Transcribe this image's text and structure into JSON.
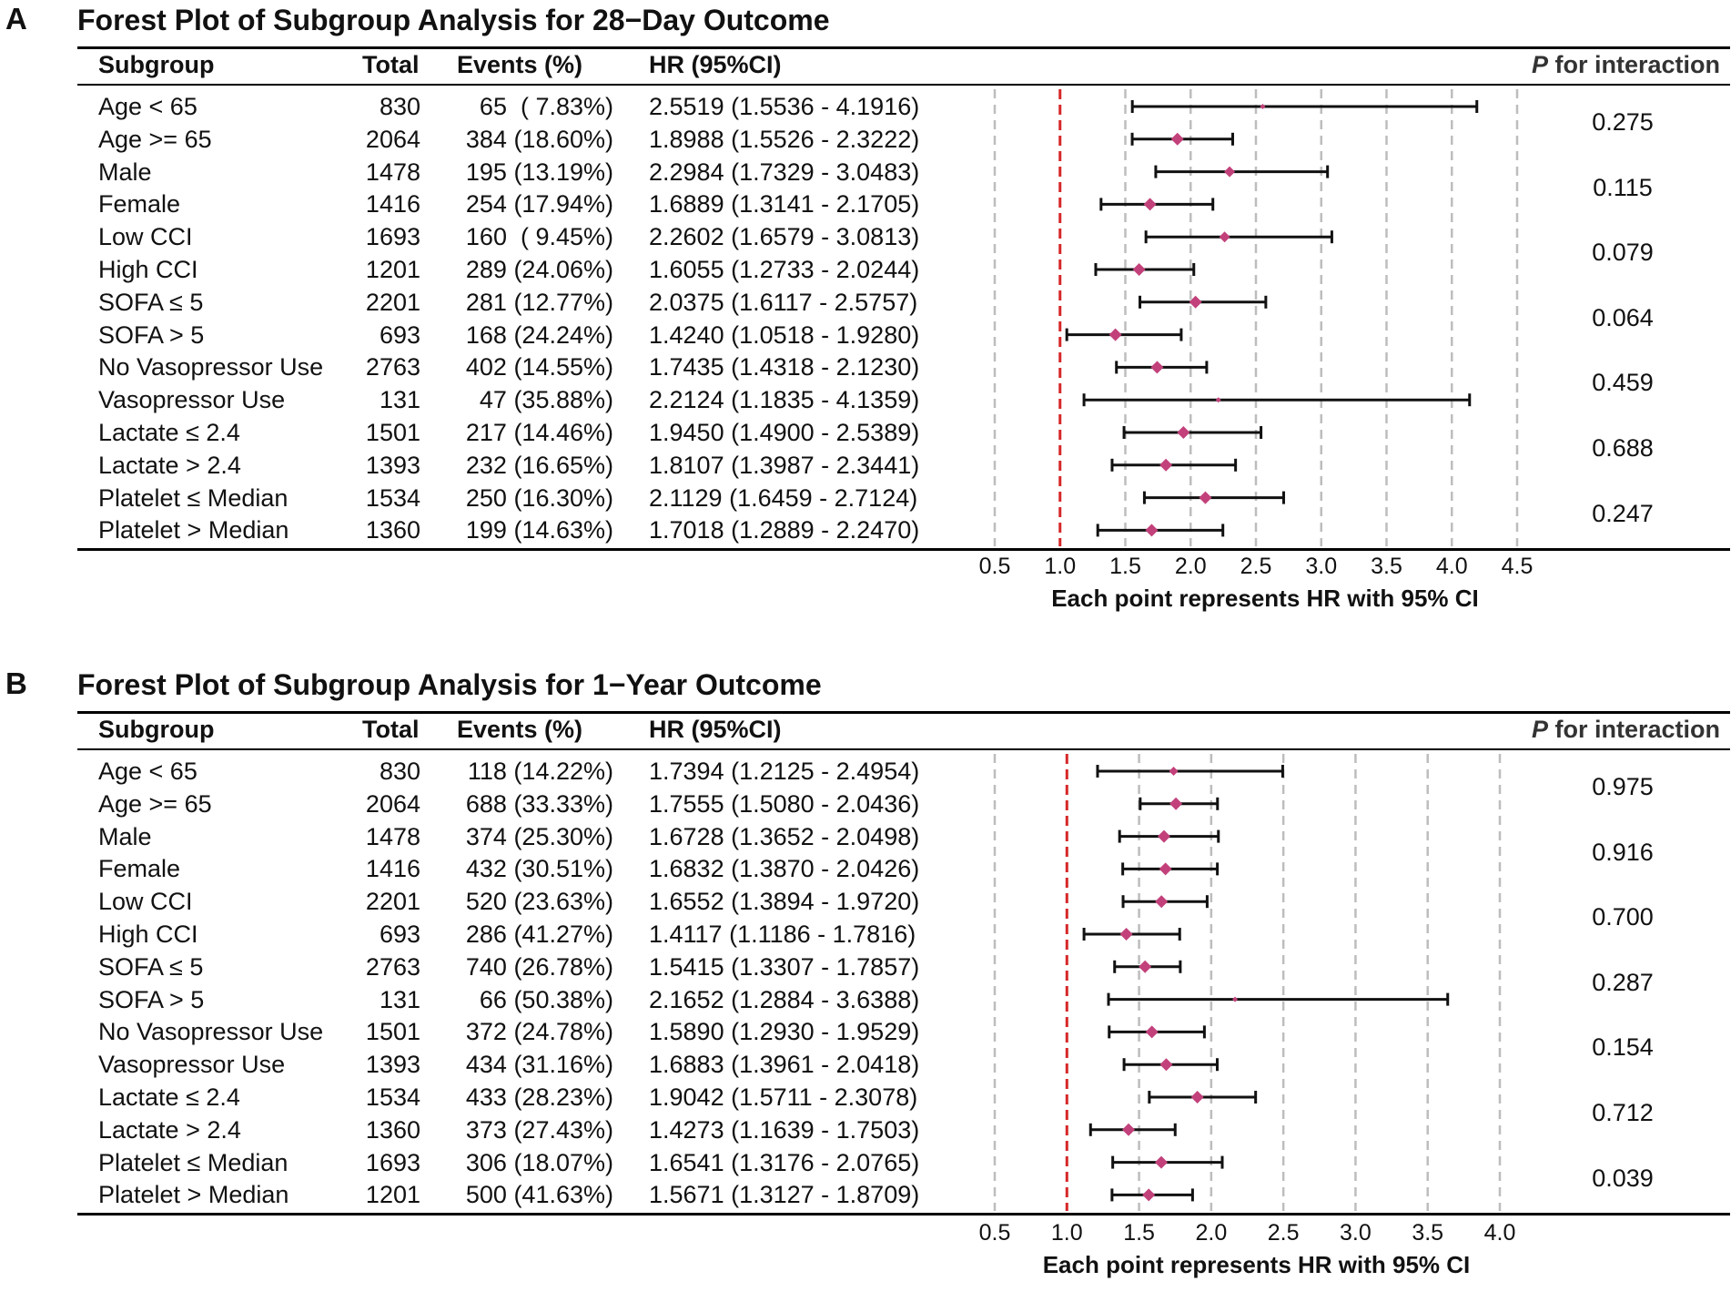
{
  "headers": {
    "subgroup": "Subgroup",
    "total": "Total",
    "events": "Events (%)",
    "hr": "HR (95%CI)",
    "p_italic": "P",
    "p_rest": " for interaction"
  },
  "colors": {
    "point": "#c2417b",
    "ci_line": "#111111",
    "reference": "#d62728",
    "grid": "#bdbdbd"
  },
  "chart_data": [
    {
      "type": "forest",
      "panel": "A",
      "title": "Forest Plot of Subgroup Analysis for 28−Day Outcome",
      "xlabel": "Each point represents HR with 95% CI",
      "xlim": [
        0.5,
        4.5
      ],
      "xticks": [
        0.5,
        1.0,
        1.5,
        2.0,
        2.5,
        3.0,
        3.5,
        4.0,
        4.5
      ],
      "xtick_labels": [
        "0.5",
        "1.0",
        "1.5",
        "2.0",
        "2.5",
        "3.0",
        "3.5",
        "4.0",
        "4.5"
      ],
      "reference_line": 1.0,
      "rows": [
        {
          "subgroup": "Age < 65",
          "total": "830",
          "events": "65  ( 7.83%)",
          "hr_text": "2.5519 (1.5536 - 4.1916)",
          "hr": 2.5519,
          "lo": 1.5536,
          "hi": 4.1916,
          "point_size": 3
        },
        {
          "subgroup": "Age >= 65",
          "total": "2064",
          "events": "384 (18.60%)",
          "hr_text": "1.8988 (1.5526 - 2.3222)",
          "hr": 1.8988,
          "lo": 1.5526,
          "hi": 2.3222,
          "point_size": 7
        },
        {
          "subgroup": "Male",
          "total": "1478",
          "events": "195 (13.19%)",
          "hr_text": "2.2984 (1.7329 - 3.0483)",
          "hr": 2.2984,
          "lo": 1.7329,
          "hi": 3.0483,
          "point_size": 6
        },
        {
          "subgroup": "Female",
          "total": "1416",
          "events": "254 (17.94%)",
          "hr_text": "1.6889 (1.3141 - 2.1705)",
          "hr": 1.6889,
          "lo": 1.3141,
          "hi": 2.1705,
          "point_size": 7
        },
        {
          "subgroup": "Low CCI",
          "total": "1693",
          "events": "160  ( 9.45%)",
          "hr_text": "2.2602 (1.6579 - 3.0813)",
          "hr": 2.2602,
          "lo": 1.6579,
          "hi": 3.0813,
          "point_size": 6
        },
        {
          "subgroup": "High CCI",
          "total": "1201",
          "events": "289 (24.06%)",
          "hr_text": "1.6055 (1.2733 - 2.0244)",
          "hr": 1.6055,
          "lo": 1.2733,
          "hi": 2.0244,
          "point_size": 7
        },
        {
          "subgroup": "SOFA ≤ 5",
          "total": "2201",
          "events": "281 (12.77%)",
          "hr_text": "2.0375 (1.6117 - 2.5757)",
          "hr": 2.0375,
          "lo": 1.6117,
          "hi": 2.5757,
          "point_size": 7
        },
        {
          "subgroup": "SOFA > 5",
          "total": "693",
          "events": "168 (24.24%)",
          "hr_text": "1.4240 (1.0518 - 1.9280)",
          "hr": 1.424,
          "lo": 1.0518,
          "hi": 1.928,
          "point_size": 7
        },
        {
          "subgroup": "No Vasopressor Use",
          "total": "2763",
          "events": "402 (14.55%)",
          "hr_text": "1.7435 (1.4318 - 2.1230)",
          "hr": 1.7435,
          "lo": 1.4318,
          "hi": 2.123,
          "point_size": 7
        },
        {
          "subgroup": "Vasopressor Use",
          "total": "131",
          "events": "47 (35.88%)",
          "hr_text": "2.2124 (1.1835 - 4.1359)",
          "hr": 2.2124,
          "lo": 1.1835,
          "hi": 4.1359,
          "point_size": 3
        },
        {
          "subgroup": "Lactate ≤ 2.4",
          "total": "1501",
          "events": "217 (14.46%)",
          "hr_text": "1.9450 (1.4900 - 2.5389)",
          "hr": 1.945,
          "lo": 1.49,
          "hi": 2.5389,
          "point_size": 7
        },
        {
          "subgroup": "Lactate > 2.4",
          "total": "1393",
          "events": "232 (16.65%)",
          "hr_text": "1.8107 (1.3987 - 2.3441)",
          "hr": 1.8107,
          "lo": 1.3987,
          "hi": 2.3441,
          "point_size": 7
        },
        {
          "subgroup": "Platelet ≤ Median",
          "total": "1534",
          "events": "250 (16.30%)",
          "hr_text": "2.1129 (1.6459 - 2.7124)",
          "hr": 2.1129,
          "lo": 1.6459,
          "hi": 2.7124,
          "point_size": 7
        },
        {
          "subgroup": "Platelet > Median",
          "total": "1360",
          "events": "199 (14.63%)",
          "hr_text": "1.7018 (1.2889 - 2.2470)",
          "hr": 1.7018,
          "lo": 1.2889,
          "hi": 2.247,
          "point_size": 7
        }
      ],
      "p_values": [
        "0.275",
        "0.115",
        "0.079",
        "0.064",
        "0.459",
        "0.688",
        "0.247"
      ]
    },
    {
      "type": "forest",
      "panel": "B",
      "title": "Forest Plot of Subgroup Analysis for 1−Year Outcome",
      "xlabel": "Each point represents HR with 95% CI",
      "xlim": [
        0.5,
        4.0
      ],
      "xticks": [
        0.5,
        1.0,
        1.5,
        2.0,
        2.5,
        3.0,
        3.5,
        4.0
      ],
      "xtick_labels": [
        "0.5",
        "1.0",
        "1.5",
        "2.0",
        "2.5",
        "3.0",
        "3.5",
        "4.0"
      ],
      "reference_line": 1.0,
      "rows": [
        {
          "subgroup": "Age < 65",
          "total": "830",
          "events": "118 (14.22%)",
          "hr_text": "1.7394 (1.2125 - 2.4954)",
          "hr": 1.7394,
          "lo": 1.2125,
          "hi": 2.4954,
          "point_size": 5
        },
        {
          "subgroup": "Age >= 65",
          "total": "2064",
          "events": "688 (33.33%)",
          "hr_text": "1.7555 (1.5080 - 2.0436)",
          "hr": 1.7555,
          "lo": 1.508,
          "hi": 2.0436,
          "point_size": 7
        },
        {
          "subgroup": "Male",
          "total": "1478",
          "events": "374 (25.30%)",
          "hr_text": "1.6728 (1.3652 - 2.0498)",
          "hr": 1.6728,
          "lo": 1.3652,
          "hi": 2.0498,
          "point_size": 7
        },
        {
          "subgroup": "Female",
          "total": "1416",
          "events": "432 (30.51%)",
          "hr_text": "1.6832 (1.3870 - 2.0426)",
          "hr": 1.6832,
          "lo": 1.387,
          "hi": 2.0426,
          "point_size": 7
        },
        {
          "subgroup": "Low CCI",
          "total": "2201",
          "events": "520 (23.63%)",
          "hr_text": "1.6552 (1.3894 - 1.9720)",
          "hr": 1.6552,
          "lo": 1.3894,
          "hi": 1.972,
          "point_size": 7
        },
        {
          "subgroup": "High CCI",
          "total": "693",
          "events": "286 (41.27%)",
          "hr_text": "1.4117 (1.1186 - 1.7816)",
          "hr": 1.4117,
          "lo": 1.1186,
          "hi": 1.7816,
          "point_size": 7
        },
        {
          "subgroup": "SOFA ≤ 5",
          "total": "2763",
          "events": "740 (26.78%)",
          "hr_text": "1.5415 (1.3307 - 1.7857)",
          "hr": 1.5415,
          "lo": 1.3307,
          "hi": 1.7857,
          "point_size": 7
        },
        {
          "subgroup": "SOFA > 5",
          "total": "131",
          "events": "66 (50.38%)",
          "hr_text": "2.1652 (1.2884 - 3.6388)",
          "hr": 2.1652,
          "lo": 1.2884,
          "hi": 3.6388,
          "point_size": 3
        },
        {
          "subgroup": "No Vasopressor Use",
          "total": "1501",
          "events": "372 (24.78%)",
          "hr_text": "1.5890 (1.2930 - 1.9529)",
          "hr": 1.589,
          "lo": 1.293,
          "hi": 1.9529,
          "point_size": 7
        },
        {
          "subgroup": "Vasopressor Use",
          "total": "1393",
          "events": "434 (31.16%)",
          "hr_text": "1.6883 (1.3961 - 2.0418)",
          "hr": 1.6883,
          "lo": 1.3961,
          "hi": 2.0418,
          "point_size": 7
        },
        {
          "subgroup": "Lactate ≤ 2.4",
          "total": "1534",
          "events": "433 (28.23%)",
          "hr_text": "1.9042 (1.5711 - 2.3078)",
          "hr": 1.9042,
          "lo": 1.5711,
          "hi": 2.3078,
          "point_size": 7
        },
        {
          "subgroup": "Lactate > 2.4",
          "total": "1360",
          "events": "373 (27.43%)",
          "hr_text": "1.4273 (1.1639 - 1.7503)",
          "hr": 1.4273,
          "lo": 1.1639,
          "hi": 1.7503,
          "point_size": 7
        },
        {
          "subgroup": "Platelet ≤ Median",
          "total": "1693",
          "events": "306 (18.07%)",
          "hr_text": "1.6541 (1.3176 - 2.0765)",
          "hr": 1.6541,
          "lo": 1.3176,
          "hi": 2.0765,
          "point_size": 7
        },
        {
          "subgroup": "Platelet > Median",
          "total": "1201",
          "events": "500 (41.63%)",
          "hr_text": "1.5671 (1.3127 - 1.8709)",
          "hr": 1.5671,
          "lo": 1.3127,
          "hi": 1.8709,
          "point_size": 7
        }
      ],
      "p_values": [
        "0.975",
        "0.916",
        "0.700",
        "0.287",
        "0.154",
        "0.712",
        "0.039"
      ]
    }
  ]
}
